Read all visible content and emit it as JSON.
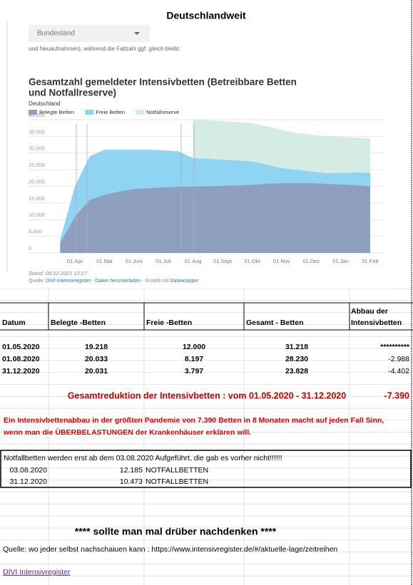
{
  "sheet_title": "Deutschlandweit",
  "dropdown": "Bundesland",
  "snippet": "und Neuaufnahmen), während die Fallzahl ggf. gleich bleibt.",
  "chart_data": {
    "type": "area",
    "stacked": true,
    "title": "Gesamtzahl gemeldeter Intensivbetten (Betreibbare Betten und Notfallreserve)",
    "title_lines": [
      "Gesamtzahl gemeldeter Intensivbetten (Betreibbare Betten",
      "und Notfallreserve)"
    ],
    "subtitle": "Deutschland",
    "categories": [
      null,
      "01.Apr",
      null,
      "01.Mai",
      null,
      "01.Juni",
      null,
      "01.Juli",
      null,
      "01.Aug",
      null,
      "01.Sept",
      null,
      "01.Okt",
      null,
      "01.Nov",
      null,
      "01.Dez",
      null,
      "01.Jan",
      null,
      "01.Feb"
    ],
    "series": [
      {
        "name": "Belegte Betten",
        "color": "#8e9fc0",
        "values": [
          3000,
          11000,
          16000,
          17500,
          18500,
          19200,
          19500,
          19700,
          19900,
          20000,
          20000,
          20200,
          20300,
          20500,
          20800,
          21000,
          21000,
          21000,
          20800,
          20600,
          20400,
          20000
        ]
      },
      {
        "name": "Freie Betten",
        "color": "#8fd4f2",
        "values": [
          1000,
          9000,
          13000,
          13500,
          12500,
          11800,
          11500,
          11100,
          10600,
          8500,
          8300,
          7800,
          7500,
          7000,
          5700,
          4500,
          4000,
          3500,
          3200,
          3400,
          3800,
          4100
        ]
      },
      {
        "name": "Notfallreserve",
        "color": "#d5ece4",
        "values": [
          null,
          null,
          null,
          null,
          null,
          null,
          null,
          null,
          null,
          11500,
          11500,
          11600,
          11500,
          11500,
          11500,
          11500,
          11000,
          11000,
          11000,
          10800,
          10400,
          10400
        ]
      }
    ],
    "ylim": [
      0,
      40000
    ],
    "yticks": [
      0,
      {
        "value": 5000,
        "label": "5.000"
      },
      {
        "value": 10000,
        "label": "10.000"
      },
      {
        "value": 15000,
        "label": "15.000"
      },
      {
        "value": 20000,
        "label": "20.000"
      },
      {
        "value": 25000,
        "label": "25.000"
      },
      {
        "value": 30000,
        "label": "30.000"
      },
      {
        "value": 35000,
        "label": "35.000"
      },
      {
        "value": 40000,
        "label": "40.000"
      }
    ],
    "grid": true,
    "legend": "top-left",
    "stand": "Stand: 08.02.2021 12:17",
    "source": [
      "Quelle: ",
      "DIVI-Intensivregister",
      " - ",
      "Daten herunterladen",
      " - Erstellt mit ",
      "Datawrapper"
    ]
  },
  "table": {
    "header": [
      "Datum",
      "Belegte -Betten",
      "Freie -Betten",
      "Gesamt - Betten",
      "Abbau der",
      "Intensivbetten"
    ],
    "rows": [
      [
        "01.05.2020",
        "19.218",
        "12.000",
        "31.218",
        "**********"
      ],
      [
        "01.08.2020",
        "20.033",
        "8.197",
        "28.230",
        "-2.988"
      ],
      [
        "31.12.2020",
        "20.031",
        "3.797",
        "23.828",
        "-4.402"
      ]
    ]
  },
  "summary": {
    "label": "Gesamtreduktion der Intensivbetten : vom 01.05.2020 - 31.12.2020",
    "value": "-7.390"
  },
  "comment": [
    "Ein Intensivbettenabbau in der größten Pandemie von 7.390 Betten in 8 Monaten macht auf jeden Fall Sinn,",
    "wenn man die ÜBERBELASTUNGEN der Krankenhäuser erklären will."
  ],
  "note": {
    "text": "Notfallbetten werden erst ab dem 03.08.2020 Aufgeführt, die gab es vorher nicht!!!!!!",
    "rows": [
      [
        "03.08.2020",
        "12.185",
        "NOTFALLBETTEN"
      ],
      [
        "31.12.2020",
        "10.473",
        "NOTFALLBETTEN"
      ]
    ]
  },
  "remark": "****  sollte man mal drüber nachdenken ****",
  "source_line": "Quelle: wo jeder selbst nachschaiuen kann : https://www.intensivregister.de/#/aktuelle-lage/zeitreihen",
  "link": "DIVI Intensivregister"
}
